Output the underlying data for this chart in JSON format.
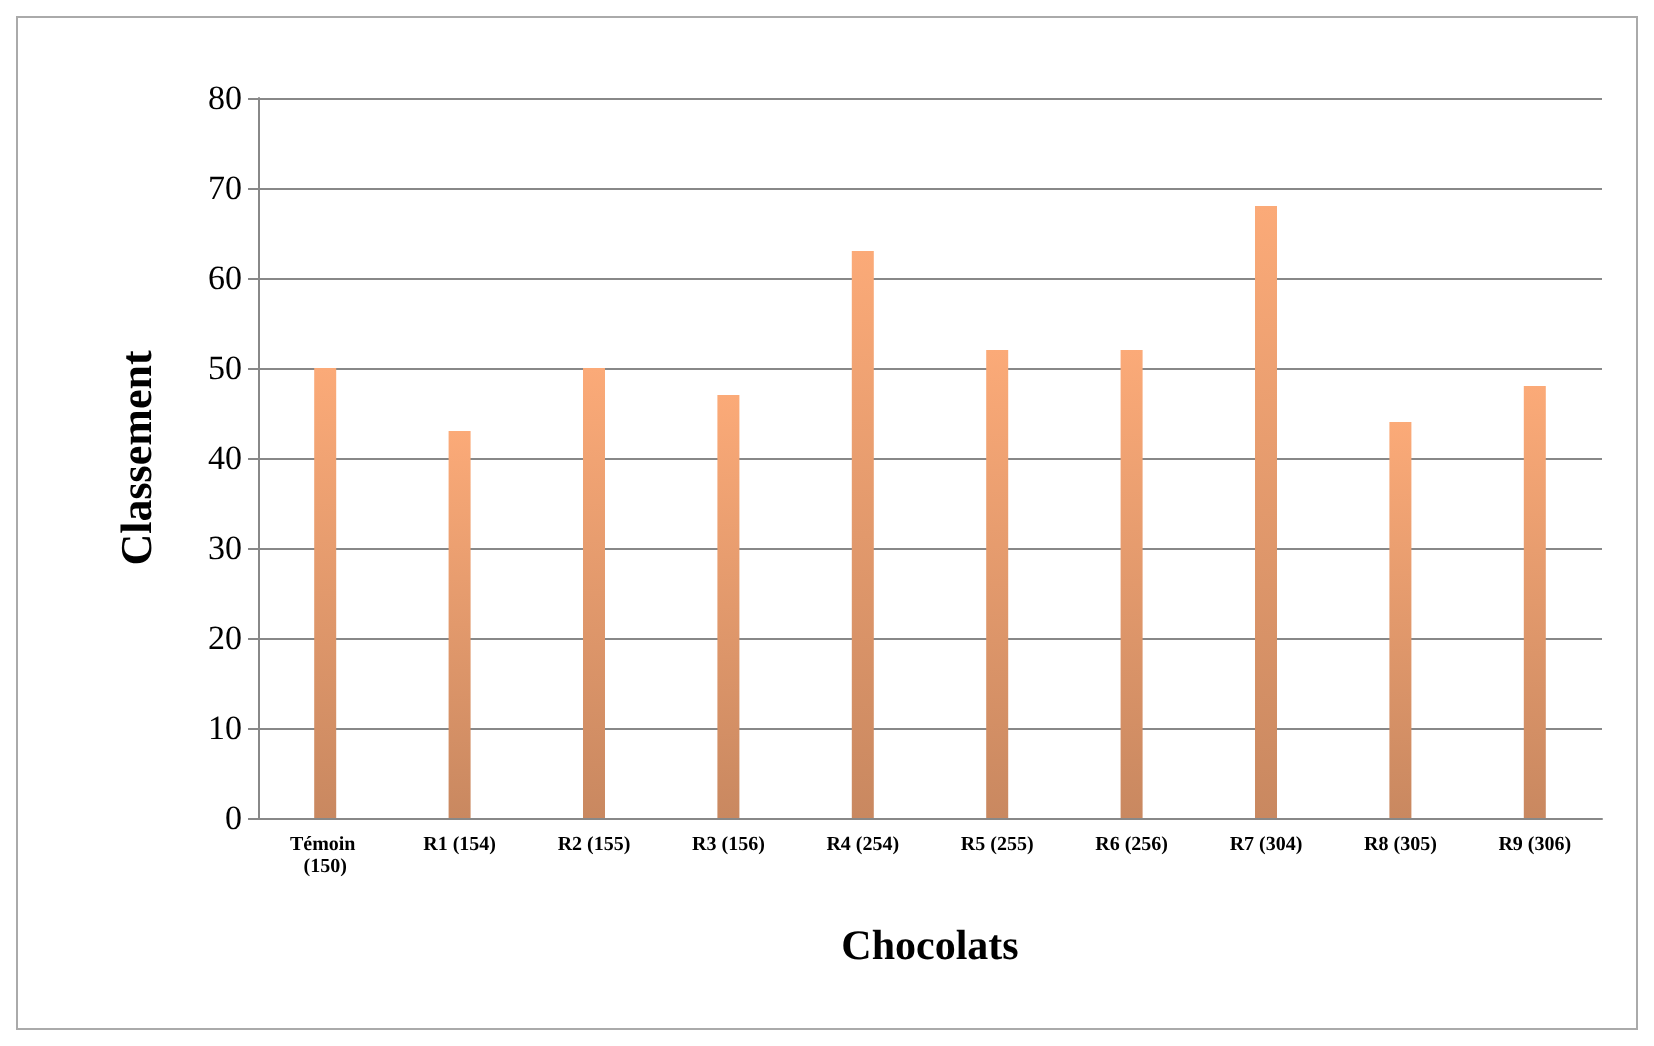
{
  "chart_data": {
    "type": "bar",
    "xlabel": "Chocolats",
    "ylabel": "Classement",
    "categories": [
      "Témoin (150)",
      "R1 (154)",
      "R2 (155)",
      "R3 (156)",
      "R4 (254)",
      "R5 (255)",
      "R6 (256)",
      "R7 (304)",
      "R8 (305)",
      "R9 (306)"
    ],
    "values": [
      50,
      43,
      50,
      47,
      63,
      52,
      52,
      68,
      44,
      48
    ],
    "color": "#fbaa78",
    "ylim": [
      0,
      80
    ],
    "yticks": [
      0,
      10,
      20,
      30,
      40,
      50,
      60,
      70,
      80
    ],
    "grid": "y"
  }
}
